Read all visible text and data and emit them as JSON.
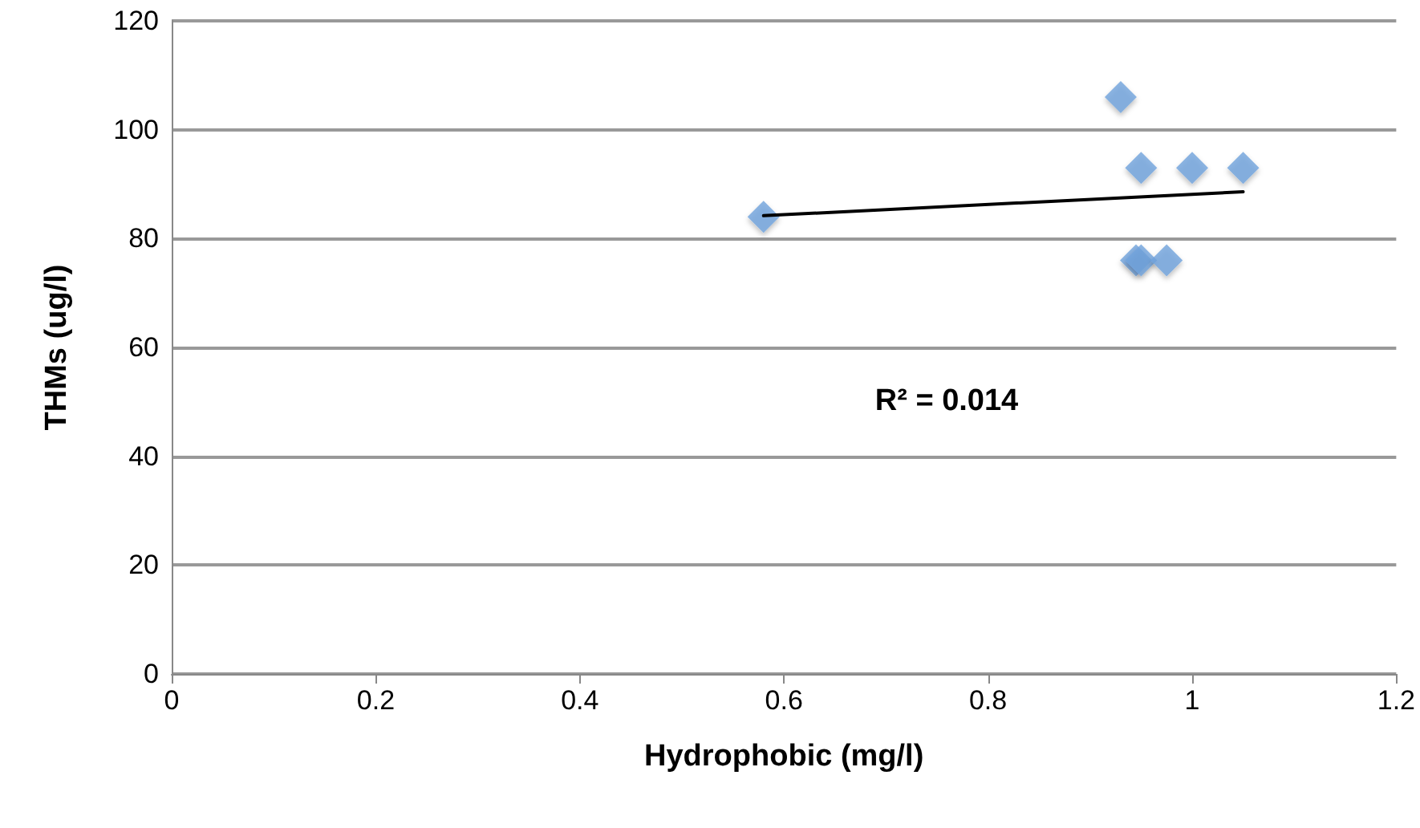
{
  "chart_data": {
    "type": "scatter",
    "xlabel": "Hydrophobic (mg/l)",
    "ylabel": "THMs (ug/l)",
    "x": [
      0.58,
      0.93,
      0.95,
      1.0,
      1.05,
      0.945,
      0.95,
      0.975
    ],
    "series": [
      {
        "color": "#6fa3dc",
        "values": [
          84,
          106,
          93,
          93,
          93,
          76,
          76,
          76
        ],
        "marker": "diamond"
      },
      {
        "type": "line",
        "color": "#000000",
        "x": [
          0.58,
          1.05
        ],
        "values": [
          84.2,
          88.6
        ],
        "marker": "none",
        "line_style": "solid"
      }
    ],
    "xlim": [
      0,
      1.2
    ],
    "xticks": [
      0,
      0.2,
      0.4,
      0.6,
      0.8,
      1,
      1.2
    ],
    "ylim": [
      0,
      120
    ],
    "yticks": [
      0,
      20,
      40,
      60,
      80,
      100,
      120
    ],
    "grid": "y",
    "annotations": [
      "R² = 0.014"
    ]
  }
}
